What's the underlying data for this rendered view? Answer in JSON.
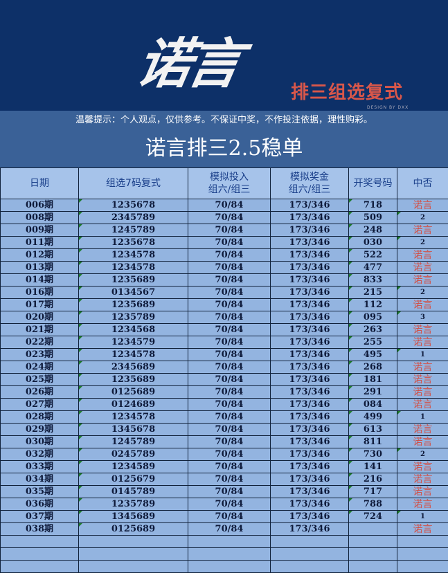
{
  "banner": {
    "logo": "诺言",
    "subtitle": "排三组选复式",
    "credit": "DESIGN BY DXX"
  },
  "notice": "温馨提示：个人观点，仅供参考。不保证中奖，不作投注依据，理性购彩。",
  "title": "诺言排三2.5稳单",
  "colors": {
    "banner": "#0d3068",
    "header": "#3a6197",
    "row": "#93b4e0",
    "win": "#d0524a"
  },
  "headers": [
    "日期",
    "组选7码复式",
    "模拟投入\n组六/组三",
    "模拟奖金\n组六/组三",
    "开奖号码",
    "中否"
  ],
  "rows": [
    [
      "006期",
      "1235678",
      "70/84",
      "173/346",
      "718",
      "诺言"
    ],
    [
      "008期",
      "2345789",
      "70/84",
      "173/346",
      "509",
      "2"
    ],
    [
      "009期",
      "1245789",
      "70/84",
      "173/346",
      "248",
      "诺言"
    ],
    [
      "011期",
      "1235678",
      "70/84",
      "173/346",
      "030",
      "2"
    ],
    [
      "012期",
      "1234578",
      "70/84",
      "173/346",
      "522",
      "诺言"
    ],
    [
      "013期",
      "1234578",
      "70/84",
      "173/346",
      "477",
      "诺言"
    ],
    [
      "014期",
      "1235689",
      "70/84",
      "173/346",
      "833",
      "诺言"
    ],
    [
      "016期",
      "0134567",
      "70/84",
      "173/346",
      "215",
      "2"
    ],
    [
      "017期",
      "1235689",
      "70/84",
      "173/346",
      "112",
      "诺言"
    ],
    [
      "020期",
      "1235789",
      "70/84",
      "173/346",
      "095",
      "3"
    ],
    [
      "021期",
      "1234568",
      "70/84",
      "173/346",
      "263",
      "诺言"
    ],
    [
      "022期",
      "1234579",
      "70/84",
      "173/346",
      "255",
      "诺言"
    ],
    [
      "023期",
      "1234578",
      "70/84",
      "173/346",
      "495",
      "1"
    ],
    [
      "024期",
      "2345689",
      "70/84",
      "173/346",
      "268",
      "诺言"
    ],
    [
      "025期",
      "1235689",
      "70/84",
      "173/346",
      "181",
      "诺言"
    ],
    [
      "026期",
      "0125689",
      "70/84",
      "173/346",
      "291",
      "诺言"
    ],
    [
      "027期",
      "0124689",
      "70/84",
      "173/346",
      "084",
      "诺言"
    ],
    [
      "028期",
      "1234578",
      "70/84",
      "173/346",
      "499",
      "1"
    ],
    [
      "029期",
      "1345678",
      "70/84",
      "173/346",
      "613",
      "诺言"
    ],
    [
      "030期",
      "1245789",
      "70/84",
      "173/346",
      "811",
      "诺言"
    ],
    [
      "032期",
      "0245789",
      "70/84",
      "173/346",
      "730",
      "2"
    ],
    [
      "033期",
      "1234589",
      "70/84",
      "173/346",
      "141",
      "诺言"
    ],
    [
      "034期",
      "0125679",
      "70/84",
      "173/346",
      "216",
      "诺言"
    ],
    [
      "035期",
      "0145789",
      "70/84",
      "173/346",
      "717",
      "诺言"
    ],
    [
      "036期",
      "1235789",
      "70/84",
      "173/346",
      "788",
      "诺言"
    ],
    [
      "037期",
      "1345689",
      "70/84",
      "173/346",
      "724",
      "1"
    ],
    [
      "038期",
      "0125689",
      "70/84",
      "173/346",
      "",
      "诺言"
    ]
  ],
  "empty_rows": 3
}
